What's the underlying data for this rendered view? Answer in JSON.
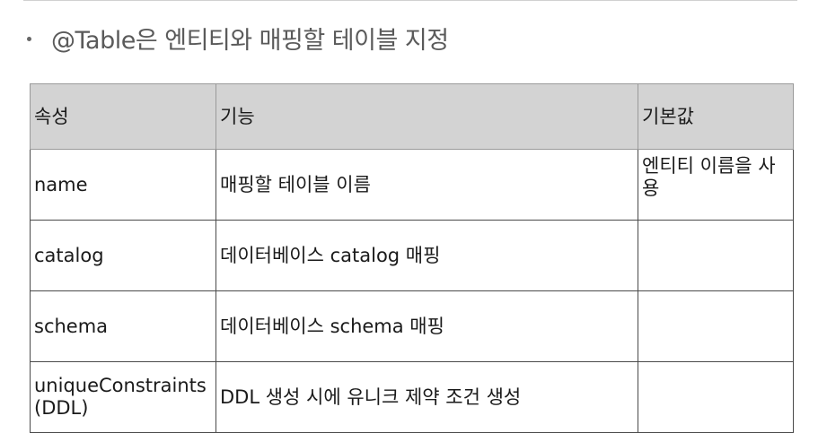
{
  "bullet": {
    "text": "@Table은 엔티티와 매핑할 테이블 지정"
  },
  "table": {
    "headers": [
      "속성",
      "기능",
      "기본값"
    ],
    "rows": [
      {
        "attribute": "name",
        "function": "매핑할 테이블 이름",
        "default": "엔티티 이름을 사용"
      },
      {
        "attribute": "catalog",
        "function": "데이터베이스 catalog 매핑",
        "default": ""
      },
      {
        "attribute": "schema",
        "function": "데이터베이스 schema 매핑",
        "default": ""
      },
      {
        "attribute": "uniqueConstraints (DDL)",
        "function": "DDL 생성 시에 유니크 제약 조건 생성",
        "default": ""
      }
    ]
  },
  "colors": {
    "header_bg": "#d3d3d3",
    "border": "#4a4a4a",
    "bullet_text": "#5a5a5a"
  }
}
